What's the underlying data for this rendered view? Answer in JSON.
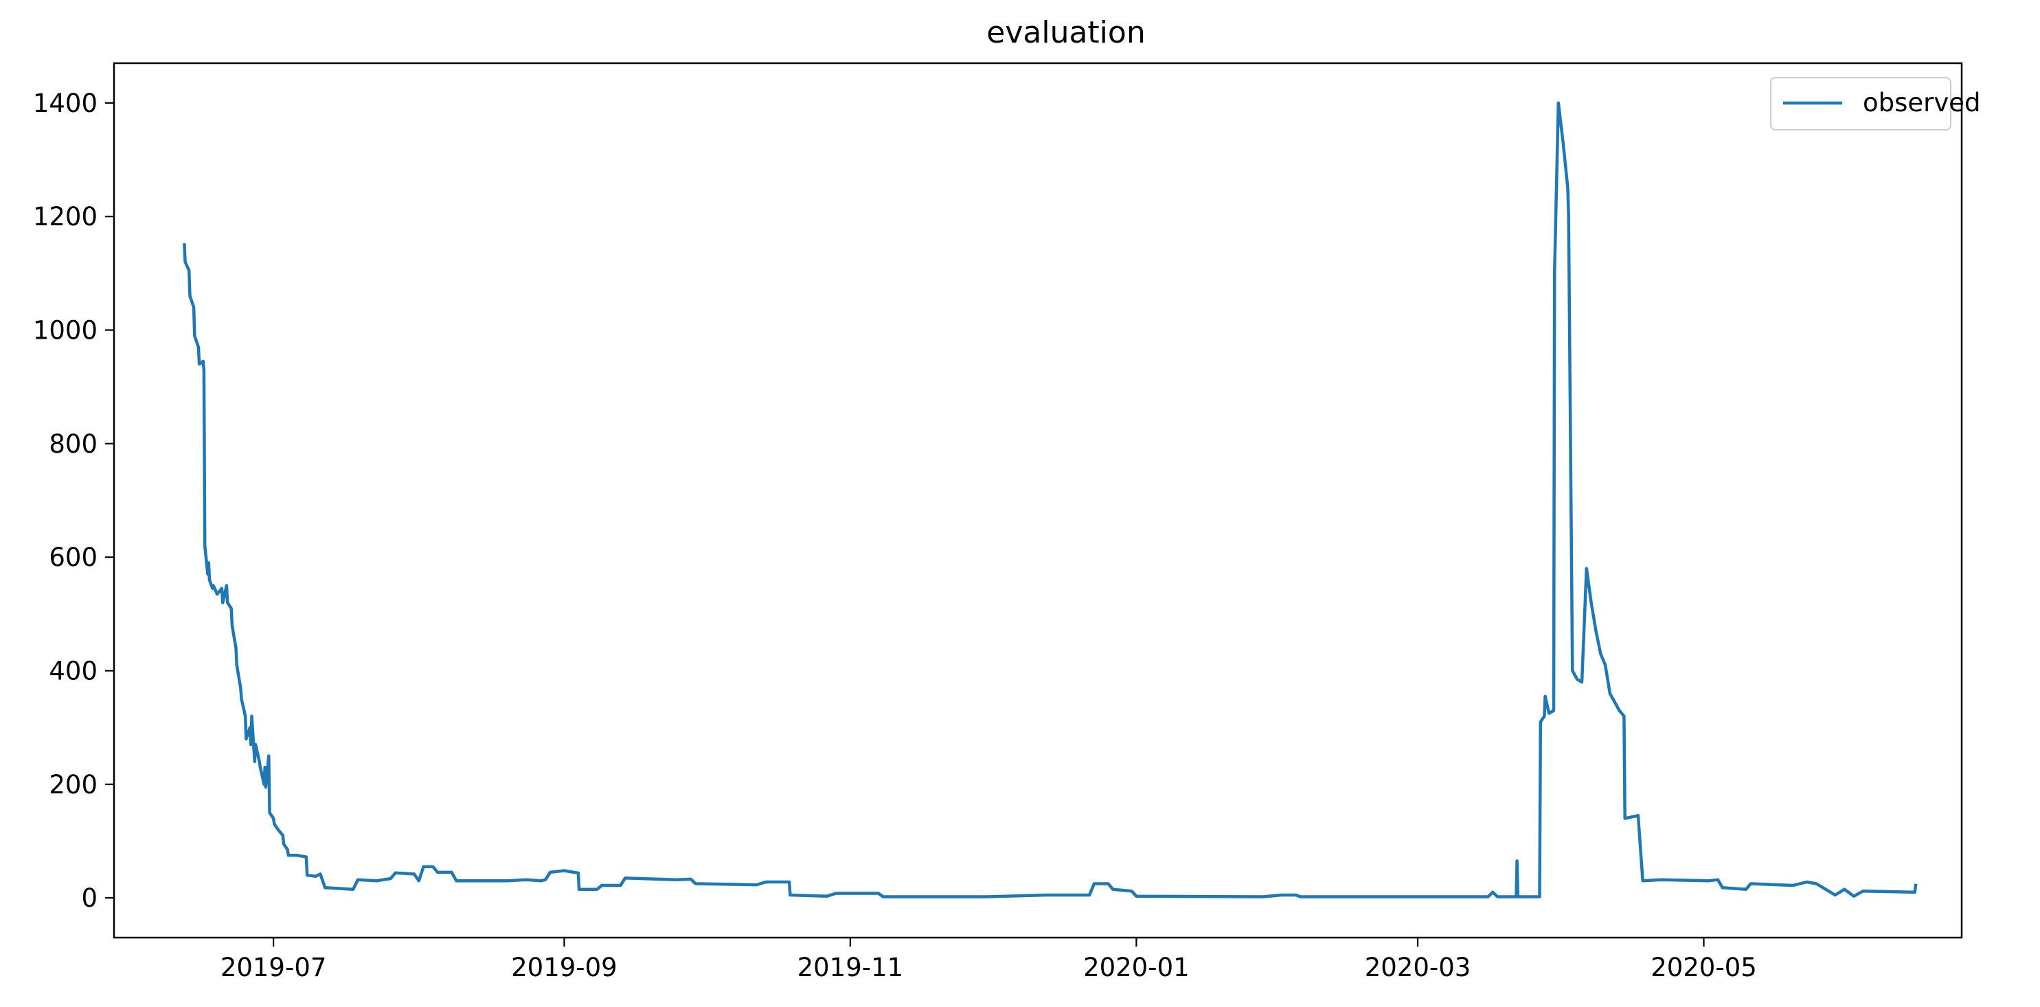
{
  "chart_data": {
    "type": "line",
    "title": "evaluation",
    "xlabel": "",
    "ylabel": "",
    "x_axis_type": "date",
    "xlim": [
      "2019-05-28",
      "2020-06-25"
    ],
    "ylim": [
      -70,
      1470
    ],
    "x_ticks": [
      "2019-07",
      "2019-09",
      "2019-11",
      "2020-01",
      "2020-03",
      "2020-05"
    ],
    "y_ticks": [
      0,
      200,
      400,
      600,
      800,
      1000,
      1200,
      1400
    ],
    "grid": false,
    "legend": {
      "position": "upper right",
      "entries": [
        "observed"
      ]
    },
    "colors": {
      "observed": "#1f77b4"
    },
    "series": [
      {
        "name": "observed",
        "points": [
          [
            "2019-06-12",
            1150
          ],
          [
            "2019-06-12",
            1120
          ],
          [
            "2019-06-13",
            1105
          ],
          [
            "2019-06-13",
            1060
          ],
          [
            "2019-06-14",
            1040
          ],
          [
            "2019-06-14",
            990
          ],
          [
            "2019-06-15",
            970
          ],
          [
            "2019-06-15",
            940
          ],
          [
            "2019-06-16",
            945
          ],
          [
            "2019-06-16",
            930
          ],
          [
            "2019-06-16",
            620
          ],
          [
            "2019-06-17",
            570
          ],
          [
            "2019-06-17",
            590
          ],
          [
            "2019-06-17",
            560
          ],
          [
            "2019-06-18",
            545
          ],
          [
            "2019-06-18",
            550
          ],
          [
            "2019-06-19",
            535
          ],
          [
            "2019-06-20",
            545
          ],
          [
            "2019-06-20",
            520
          ],
          [
            "2019-06-21",
            550
          ],
          [
            "2019-06-21",
            520
          ],
          [
            "2019-06-22",
            510
          ],
          [
            "2019-06-22",
            480
          ],
          [
            "2019-06-23",
            440
          ],
          [
            "2019-06-23",
            410
          ],
          [
            "2019-06-24",
            370
          ],
          [
            "2019-06-24",
            350
          ],
          [
            "2019-06-25",
            320
          ],
          [
            "2019-06-25",
            280
          ],
          [
            "2019-06-26",
            300
          ],
          [
            "2019-06-26",
            270
          ],
          [
            "2019-06-26",
            320
          ],
          [
            "2019-06-27",
            240
          ],
          [
            "2019-06-27",
            270
          ],
          [
            "2019-06-28",
            240
          ],
          [
            "2019-06-28",
            230
          ],
          [
            "2019-06-29",
            200
          ],
          [
            "2019-06-29",
            230
          ],
          [
            "2019-06-29",
            195
          ],
          [
            "2019-06-30",
            250
          ],
          [
            "2019-06-30",
            150
          ],
          [
            "2019-07-01",
            140
          ],
          [
            "2019-07-01",
            130
          ],
          [
            "2019-07-02",
            120
          ],
          [
            "2019-07-03",
            110
          ],
          [
            "2019-07-03",
            95
          ],
          [
            "2019-07-04",
            85
          ],
          [
            "2019-07-04",
            75
          ],
          [
            "2019-07-06",
            75
          ],
          [
            "2019-07-08",
            72
          ],
          [
            "2019-07-08",
            40
          ],
          [
            "2019-07-10",
            38
          ],
          [
            "2019-07-11",
            42
          ],
          [
            "2019-07-12",
            18
          ],
          [
            "2019-07-18",
            15
          ],
          [
            "2019-07-19",
            32
          ],
          [
            "2019-07-23",
            30
          ],
          [
            "2019-07-26",
            34
          ],
          [
            "2019-07-27",
            44
          ],
          [
            "2019-07-31",
            42
          ],
          [
            "2019-08-01",
            30
          ],
          [
            "2019-08-02",
            55
          ],
          [
            "2019-08-04",
            55
          ],
          [
            "2019-08-05",
            45
          ],
          [
            "2019-08-08",
            45
          ],
          [
            "2019-08-09",
            30
          ],
          [
            "2019-08-20",
            30
          ],
          [
            "2019-08-24",
            32
          ],
          [
            "2019-08-27",
            30
          ],
          [
            "2019-08-28",
            32
          ],
          [
            "2019-08-29",
            45
          ],
          [
            "2019-09-01",
            48
          ],
          [
            "2019-09-03",
            45
          ],
          [
            "2019-09-04",
            44
          ],
          [
            "2019-09-04",
            15
          ],
          [
            "2019-09-08",
            15
          ],
          [
            "2019-09-09",
            22
          ],
          [
            "2019-09-13",
            22
          ],
          [
            "2019-09-14",
            35
          ],
          [
            "2019-09-25",
            32
          ],
          [
            "2019-09-28",
            33
          ],
          [
            "2019-09-29",
            25
          ],
          [
            "2019-10-12",
            23
          ],
          [
            "2019-10-14",
            28
          ],
          [
            "2019-10-19",
            28
          ],
          [
            "2019-10-19",
            5
          ],
          [
            "2019-10-27",
            3
          ],
          [
            "2019-10-29",
            8
          ],
          [
            "2019-11-07",
            8
          ],
          [
            "2019-11-08",
            2
          ],
          [
            "2019-11-30",
            2
          ],
          [
            "2019-12-13",
            5
          ],
          [
            "2019-12-22",
            5
          ],
          [
            "2019-12-23",
            25
          ],
          [
            "2019-12-26",
            25
          ],
          [
            "2019-12-27",
            15
          ],
          [
            "2019-12-31",
            12
          ],
          [
            "2020-01-01",
            3
          ],
          [
            "2020-01-28",
            2
          ],
          [
            "2020-02-01",
            5
          ],
          [
            "2020-02-04",
            5
          ],
          [
            "2020-02-05",
            2
          ],
          [
            "2020-03-16",
            2
          ],
          [
            "2020-03-17",
            10
          ],
          [
            "2020-03-18",
            2
          ],
          [
            "2020-03-22",
            2
          ],
          [
            "2020-03-22",
            65
          ],
          [
            "2020-03-22",
            2
          ],
          [
            "2020-03-27",
            2
          ],
          [
            "2020-03-27",
            310
          ],
          [
            "2020-03-28",
            320
          ],
          [
            "2020-03-28",
            355
          ],
          [
            "2020-03-29",
            325
          ],
          [
            "2020-03-30",
            330
          ],
          [
            "2020-03-30",
            1100
          ],
          [
            "2020-03-31",
            1400
          ],
          [
            "2020-04-01",
            1330
          ],
          [
            "2020-04-02",
            1250
          ],
          [
            "2020-04-02",
            1200
          ],
          [
            "2020-04-03",
            400
          ],
          [
            "2020-04-04",
            385
          ],
          [
            "2020-04-05",
            380
          ],
          [
            "2020-04-06",
            580
          ],
          [
            "2020-04-07",
            520
          ],
          [
            "2020-04-08",
            470
          ],
          [
            "2020-04-09",
            430
          ],
          [
            "2020-04-10",
            410
          ],
          [
            "2020-04-11",
            360
          ],
          [
            "2020-04-13",
            330
          ],
          [
            "2020-04-14",
            320
          ],
          [
            "2020-04-14",
            140
          ],
          [
            "2020-04-17",
            145
          ],
          [
            "2020-04-18",
            30
          ],
          [
            "2020-04-22",
            32
          ],
          [
            "2020-05-02",
            30
          ],
          [
            "2020-05-04",
            32
          ],
          [
            "2020-05-05",
            18
          ],
          [
            "2020-05-10",
            15
          ],
          [
            "2020-05-11",
            25
          ],
          [
            "2020-05-20",
            22
          ],
          [
            "2020-05-23",
            28
          ],
          [
            "2020-05-25",
            25
          ],
          [
            "2020-05-27",
            15
          ],
          [
            "2020-05-29",
            5
          ],
          [
            "2020-05-31",
            15
          ],
          [
            "2020-06-02",
            3
          ],
          [
            "2020-06-04",
            12
          ],
          [
            "2020-06-15",
            10
          ],
          [
            "2020-06-15",
            22
          ]
        ]
      }
    ]
  }
}
